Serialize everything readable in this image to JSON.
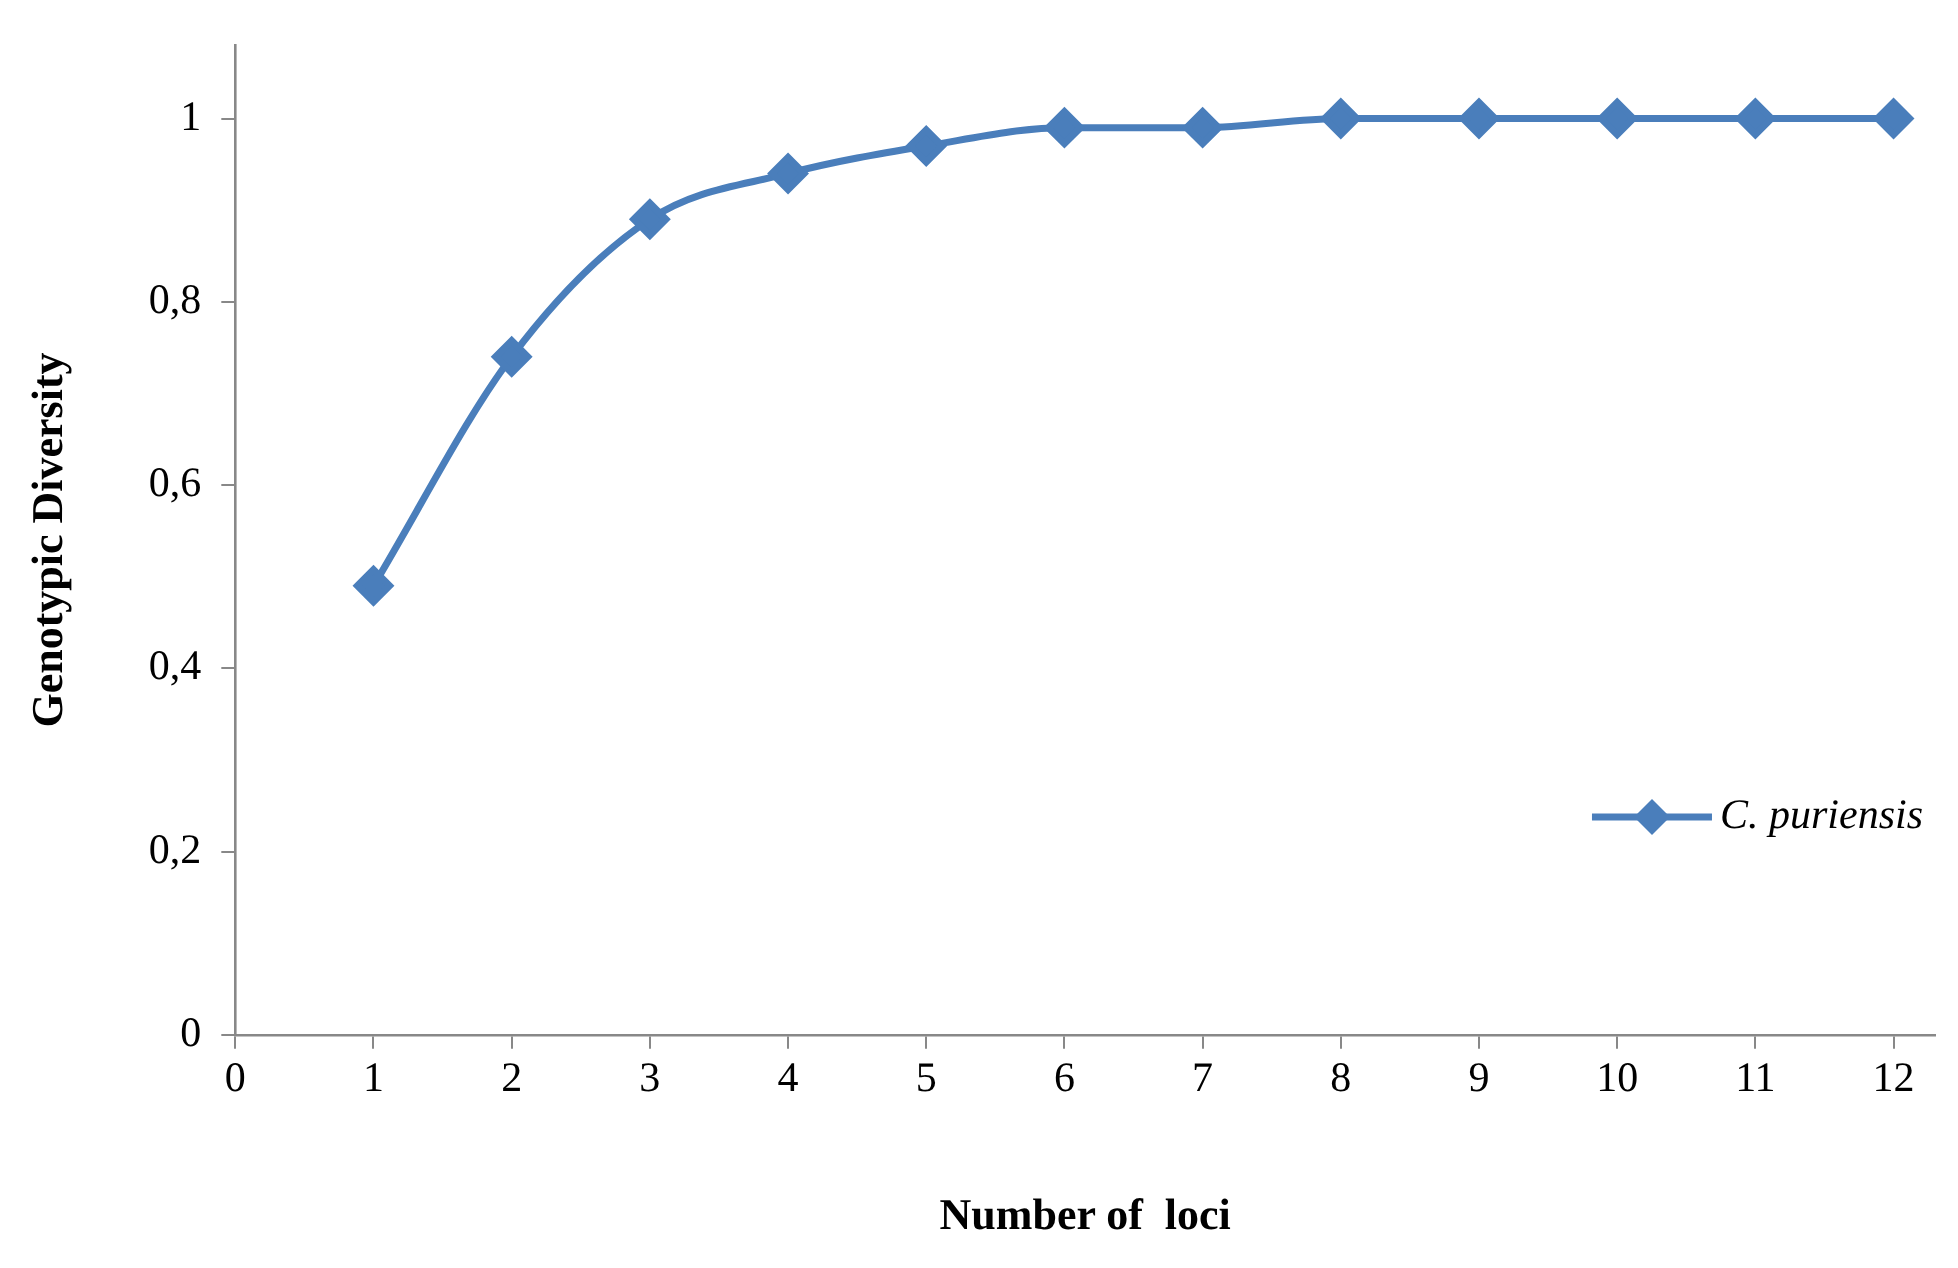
{
  "chart_data": {
    "type": "line",
    "xlabel": "Number of  loci",
    "ylabel": "Genotypic Diversity",
    "x": [
      1,
      2,
      3,
      4,
      5,
      6,
      7,
      8,
      9,
      10,
      11,
      12
    ],
    "series": [
      {
        "name": "C. puriensis",
        "color": "#4a7ebb",
        "values": [
          0.49,
          0.74,
          0.89,
          0.94,
          0.97,
          0.99,
          0.99,
          1.0,
          1.0,
          1.0,
          1.0,
          1.0
        ]
      }
    ],
    "xlim": [
      0,
      12.3
    ],
    "xticks": [
      0,
      1,
      2,
      3,
      4,
      5,
      6,
      7,
      8,
      9,
      10,
      11,
      12
    ],
    "ylim": [
      0,
      1.08
    ],
    "yticks": [
      0,
      {
        "value": 0.2,
        "label": "0,2"
      },
      {
        "value": 0.4,
        "label": "0,4"
      },
      {
        "value": 0.6,
        "label": "0,6"
      },
      {
        "value": 0.8,
        "label": "0,8"
      },
      1
    ],
    "marker": "diamond",
    "line_style": "solid",
    "grid": false,
    "legend": "right"
  }
}
